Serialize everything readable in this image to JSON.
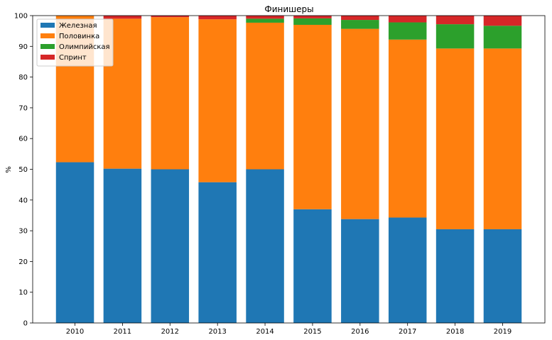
{
  "chart_data": {
    "type": "bar",
    "stacked": true,
    "title": "Финишеры",
    "xlabel": "",
    "ylabel": "%",
    "ylim": [
      0,
      100
    ],
    "yticks": [
      0,
      10,
      20,
      30,
      40,
      50,
      60,
      70,
      80,
      90,
      100
    ],
    "categories": [
      "2010",
      "2011",
      "2012",
      "2013",
      "2014",
      "2015",
      "2016",
      "2017",
      "2018",
      "2019"
    ],
    "series": [
      {
        "name": "Железная",
        "color": "#1f77b4",
        "values": [
          52.3,
          50.2,
          50.0,
          45.8,
          50.0,
          37.0,
          33.8,
          34.3,
          30.5,
          30.5
        ]
      },
      {
        "name": "Половинка",
        "color": "#ff7f0e",
        "values": [
          47.7,
          48.8,
          49.5,
          53.0,
          47.7,
          60.0,
          61.9,
          57.9,
          58.8,
          58.8
        ]
      },
      {
        "name": "Олимпийская",
        "color": "#2ca02c",
        "values": [
          0.0,
          0.0,
          0.0,
          0.0,
          1.3,
          2.1,
          2.9,
          5.6,
          7.9,
          7.4
        ]
      },
      {
        "name": "Спринт",
        "color": "#d62728",
        "values": [
          0.0,
          1.0,
          0.5,
          1.2,
          1.0,
          0.9,
          1.4,
          2.2,
          2.8,
          3.3
        ]
      }
    ],
    "grid": false,
    "legend_position": "top-left"
  }
}
